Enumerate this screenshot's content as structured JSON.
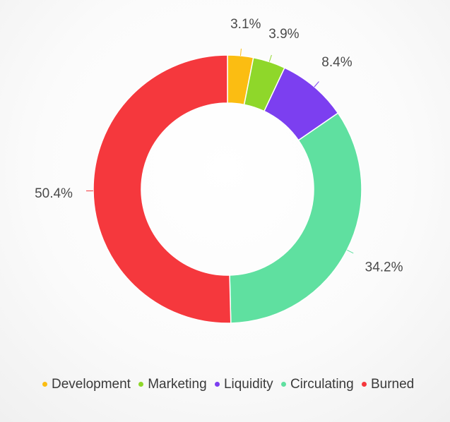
{
  "chart_data": {
    "type": "pie",
    "title": "",
    "categories": [
      "Development",
      "Marketing",
      "Liquidity",
      "Circulating",
      "Burned"
    ],
    "values": [
      3.1,
      3.9,
      8.4,
      34.2,
      50.4
    ],
    "labels": [
      "3.1%",
      "3.9%",
      "8.4%",
      "34.2%",
      "50.4%"
    ],
    "colors": [
      "#fbbd12",
      "#8fd72a",
      "#7c3ff0",
      "#5fe0a0",
      "#f5383d"
    ],
    "legend_position": "bottom-left",
    "donut": true
  }
}
